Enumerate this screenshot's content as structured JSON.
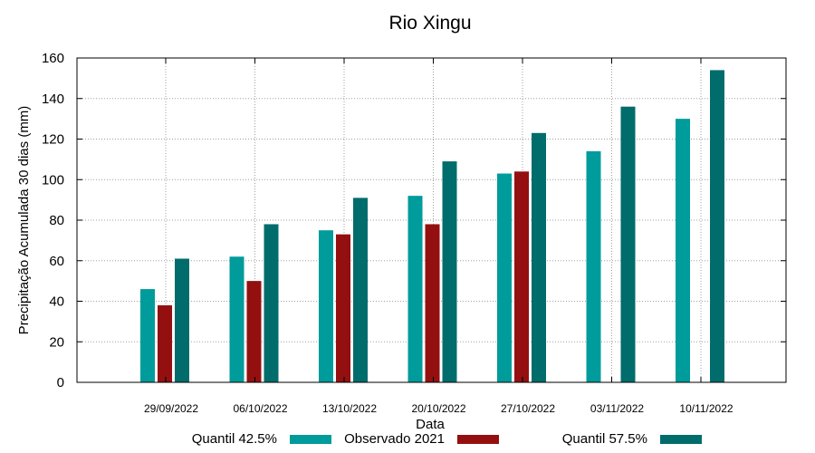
{
  "chart_data": {
    "type": "bar",
    "title": "Rio Xingu",
    "xlabel": "Data",
    "ylabel": "Precipitação Acumulada 30 dias (mm)",
    "ylim": [
      0,
      160
    ],
    "yticks": [
      0,
      20,
      40,
      60,
      80,
      100,
      120,
      140,
      160
    ],
    "grid": true,
    "legend_position": "bottom",
    "categories": [
      "29/09/2022",
      "06/10/2022",
      "13/10/2022",
      "20/10/2022",
      "27/10/2022",
      "03/11/2022",
      "10/11/2022"
    ],
    "series": [
      {
        "name": "Quantil 42.5%",
        "color": "#009b9b",
        "values": [
          46,
          62,
          75,
          92,
          103,
          114,
          130
        ]
      },
      {
        "name": "Observado 2021",
        "color": "#941010",
        "values": [
          38,
          50,
          73,
          78,
          104,
          null,
          null
        ]
      },
      {
        "name": "Quantil 57.5%",
        "color": "#006c6c",
        "values": [
          61,
          78,
          91,
          109,
          123,
          136,
          154
        ]
      }
    ]
  }
}
